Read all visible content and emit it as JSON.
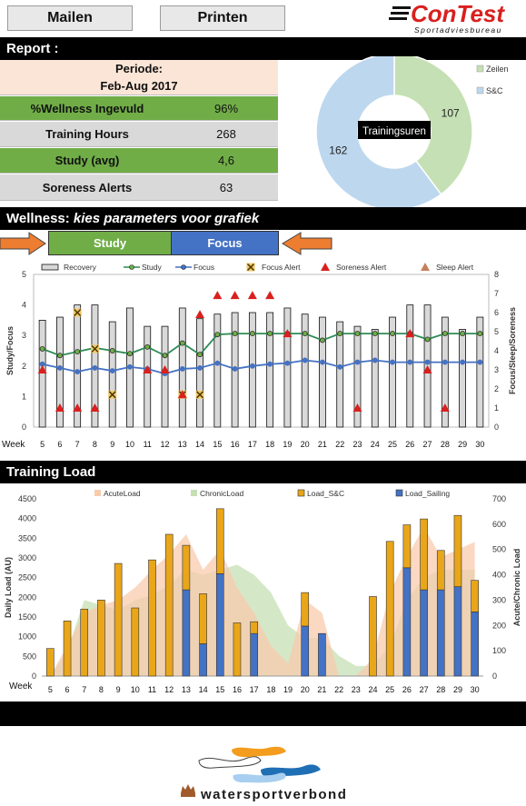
{
  "toolbar": {
    "mail_label": "Mailen",
    "print_label": "Printen"
  },
  "brand": {
    "logo_text": "ConTest",
    "logo_sub": "Sportadviesbureau",
    "footer_text": "watersportverbond"
  },
  "report": {
    "title": "Report :",
    "period_label": "Periode:",
    "period_value": "Feb-Aug 2017",
    "rows": [
      {
        "label": "%Wellness Ingevuld",
        "value": "96%"
      },
      {
        "label": "Training Hours",
        "value": "268"
      },
      {
        "label": "Study (avg)",
        "value": "4,6"
      },
      {
        "label": "Soreness Alerts",
        "value": "63"
      }
    ]
  },
  "wellness": {
    "title_prefix": "Wellness: ",
    "title_emph": "kies parameters voor grafiek",
    "param_left": "Study",
    "param_right": "Focus"
  },
  "colors": {
    "green": "#70ad47",
    "blue": "#4472c4",
    "orange": "#ed7d31",
    "gold": "#e9a61a",
    "recovery_fill": "#d9d9d9",
    "alert_red": "#d9201e"
  },
  "training_load": {
    "title": "Training Load"
  },
  "chart_data": [
    {
      "type": "pie",
      "center_label": "Trainingsuren",
      "categories": [
        "Zeilen",
        "S&C"
      ],
      "values": [
        107,
        162
      ],
      "colors": [
        "#c5e0b4",
        "#bdd7ee"
      ],
      "legend": "right"
    },
    {
      "type": "bar",
      "x_axis_label": "Week",
      "x": [
        5,
        6,
        7,
        8,
        9,
        10,
        11,
        12,
        13,
        14,
        15,
        16,
        17,
        18,
        19,
        20,
        21,
        22,
        23,
        24,
        25,
        26,
        27,
        28,
        29,
        30
      ],
      "ylabel": "Study/Focus",
      "y2label": "Focus/Sleep/Soreness",
      "ylim": [
        0,
        5
      ],
      "y2lim": [
        0,
        8
      ],
      "yticks": [
        0,
        1,
        2,
        3,
        4,
        5
      ],
      "y2ticks": [
        0,
        1,
        2,
        3,
        4,
        5,
        6,
        7,
        8
      ],
      "legend": "top",
      "series": [
        {
          "name": "Recovery",
          "axis": "left",
          "kind": "bar",
          "values": [
            3.5,
            3.6,
            4.0,
            4.0,
            3.45,
            3.9,
            3.3,
            3.3,
            3.9,
            3.55,
            3.7,
            3.75,
            3.75,
            3.75,
            3.9,
            3.7,
            3.6,
            3.45,
            3.3,
            3.2,
            3.6,
            4.0,
            4.0,
            3.6,
            3.2,
            3.6
          ]
        },
        {
          "name": "Study",
          "axis": "right",
          "kind": "line",
          "values": [
            4.1,
            3.75,
            3.95,
            4.15,
            4.0,
            3.85,
            4.2,
            3.75,
            4.4,
            3.8,
            4.85,
            4.9,
            4.9,
            4.9,
            4.9,
            4.9,
            4.55,
            4.9,
            4.9,
            4.9,
            4.9,
            4.9,
            4.6,
            4.9,
            4.9,
            4.9
          ]
        },
        {
          "name": "Focus",
          "axis": "right",
          "kind": "line",
          "values": [
            3.3,
            3.1,
            2.9,
            3.1,
            2.95,
            3.15,
            3.05,
            2.8,
            3.05,
            3.1,
            3.35,
            3.05,
            3.2,
            3.3,
            3.35,
            3.5,
            3.4,
            3.15,
            3.4,
            3.5,
            3.4,
            3.4,
            3.4,
            3.4,
            3.4,
            3.4
          ]
        },
        {
          "name": "Focus Alert",
          "axis": "right",
          "kind": "marker",
          "points": [
            [
              7,
              6.0
            ],
            [
              8,
              4.1
            ],
            [
              9,
              1.7
            ],
            [
              13,
              1.7
            ],
            [
              14,
              1.7
            ]
          ]
        },
        {
          "name": "Soreness Alert",
          "axis": "right",
          "kind": "marker",
          "points": [
            [
              5,
              3.0
            ],
            [
              6,
              1.0
            ],
            [
              7,
              1.0
            ],
            [
              8,
              1.0
            ],
            [
              11,
              3.0
            ],
            [
              12,
              3.0
            ],
            [
              13,
              1.7
            ],
            [
              14,
              5.9
            ],
            [
              15,
              6.9
            ],
            [
              16,
              6.9
            ],
            [
              17,
              6.9
            ],
            [
              18,
              6.9
            ],
            [
              19,
              4.9
            ],
            [
              23,
              1.0
            ],
            [
              26,
              4.9
            ],
            [
              27,
              3.0
            ],
            [
              28,
              1.0
            ]
          ]
        },
        {
          "name": "Sleep Alert",
          "axis": "right",
          "kind": "marker",
          "points": []
        }
      ]
    },
    {
      "type": "bar",
      "x_axis_label": "Week",
      "x": [
        5,
        6,
        7,
        8,
        9,
        10,
        11,
        12,
        13,
        14,
        15,
        16,
        17,
        18,
        19,
        20,
        21,
        22,
        23,
        24,
        25,
        26,
        27,
        28,
        29,
        30
      ],
      "ylabel": "Daily Load (AU)",
      "y2label": "Acute/Chronic Load",
      "ylim": [
        0,
        4500
      ],
      "y2lim": [
        0,
        700
      ],
      "yticks": [
        0,
        500,
        1000,
        1500,
        2000,
        2500,
        3000,
        3500,
        4000,
        4500
      ],
      "y2ticks": [
        0,
        100,
        200,
        300,
        400,
        500,
        600,
        700
      ],
      "legend": "top",
      "stacked": true,
      "series": [
        {
          "name": "AcuteLoad",
          "axis": "right",
          "kind": "area",
          "color": "#f8cbad",
          "values": [
            0,
            120,
            250,
            280,
            300,
            350,
            420,
            480,
            560,
            420,
            500,
            350,
            250,
            120,
            50,
            300,
            250,
            0,
            0,
            70,
            330,
            470,
            590,
            470,
            500,
            530
          ]
        },
        {
          "name": "ChronicLoad",
          "axis": "right",
          "kind": "area",
          "color": "#c5e0b4",
          "values": [
            0,
            100,
            300,
            280,
            260,
            300,
            320,
            360,
            420,
            400,
            420,
            440,
            400,
            330,
            200,
            150,
            150,
            80,
            40,
            40,
            120,
            300,
            390,
            420,
            420,
            420
          ]
        },
        {
          "name": "Load_S&C",
          "axis": "left",
          "kind": "bar",
          "color": "#e9a61a",
          "values": [
            700,
            1400,
            1700,
            1930,
            2860,
            1730,
            2950,
            3600,
            1130,
            1270,
            1650,
            1350,
            300,
            0,
            0,
            850,
            0,
            0,
            0,
            2020,
            3420,
            1090,
            1800,
            1000,
            1810,
            800
          ]
        },
        {
          "name": "Load_Sailing",
          "axis": "left",
          "kind": "bar",
          "color": "#4472c4",
          "values": [
            0,
            0,
            0,
            0,
            0,
            0,
            0,
            0,
            2190,
            820,
            2600,
            0,
            1080,
            0,
            0,
            1270,
            1080,
            0,
            0,
            0,
            0,
            2750,
            2190,
            2190,
            2270,
            1630
          ]
        }
      ]
    }
  ]
}
